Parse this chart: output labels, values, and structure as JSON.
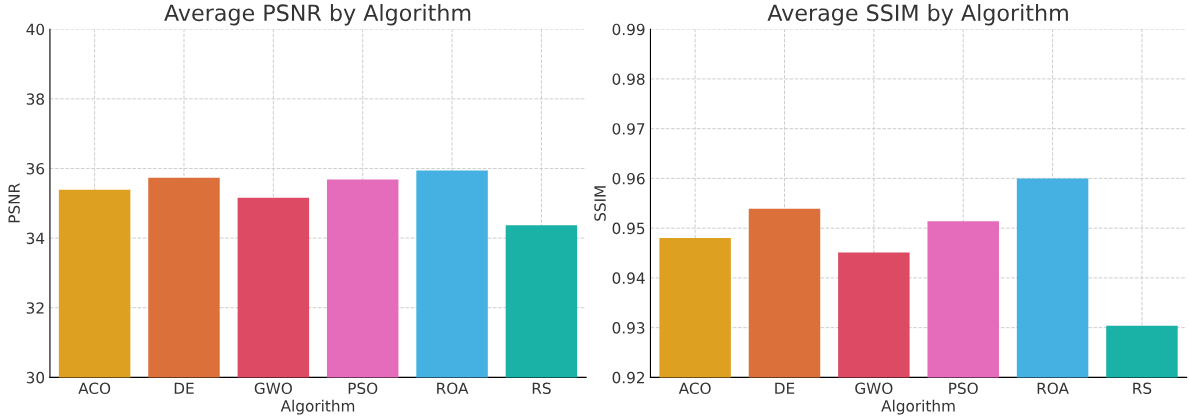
{
  "chart_data": [
    {
      "type": "bar",
      "title": "Average PSNR by Algorithm",
      "xlabel": "Algorithm",
      "ylabel": "PSNR",
      "categories": [
        "ACO",
        "DE",
        "GWO",
        "PSO",
        "ROA",
        "RS"
      ],
      "values": [
        35.39,
        35.73,
        35.16,
        35.68,
        35.94,
        34.37
      ],
      "colors": [
        "#dea020",
        "#db703a",
        "#dc4a63",
        "#e46cba",
        "#44b1e2",
        "#1ab1a7"
      ],
      "ylim": [
        30,
        40
      ],
      "yticks": [
        30,
        32,
        34,
        36,
        38,
        40
      ],
      "grid": true
    },
    {
      "type": "bar",
      "title": "Average SSIM by Algorithm",
      "xlabel": "Algorithm",
      "ylabel": "SSIM",
      "categories": [
        "ACO",
        "DE",
        "GWO",
        "PSO",
        "ROA",
        "RS"
      ],
      "values": [
        0.948,
        0.9539,
        0.9451,
        0.9514,
        0.96,
        0.9304
      ],
      "colors": [
        "#dea020",
        "#db703a",
        "#dc4a63",
        "#e46cba",
        "#44b1e2",
        "#1ab1a7"
      ],
      "ylim": [
        0.92,
        0.99
      ],
      "yticks": [
        {
          "value": 0.92,
          "label": "0.92"
        },
        {
          "value": 0.93,
          "label": "0.93"
        },
        {
          "value": 0.94,
          "label": "0.94"
        },
        {
          "value": 0.95,
          "label": "0.95"
        },
        {
          "value": 0.96,
          "label": "0.96"
        },
        {
          "value": 0.97,
          "label": "0.97"
        },
        {
          "value": 0.98,
          "label": "0.98"
        },
        {
          "value": 0.99,
          "label": "0.99"
        }
      ],
      "grid": true
    }
  ]
}
